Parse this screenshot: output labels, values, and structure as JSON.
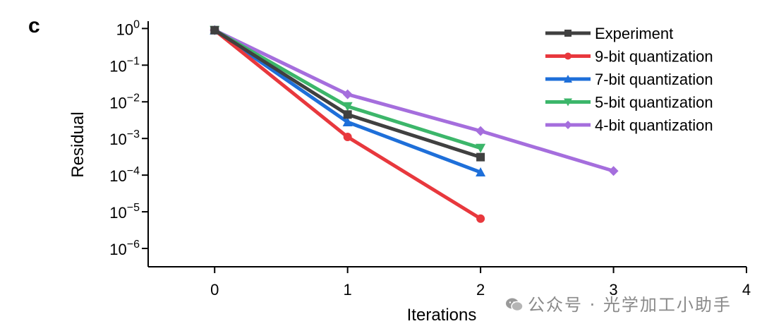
{
  "panel_label": "c",
  "watermark": "公众号 · 光学加工小助手",
  "chart_data": {
    "type": "line",
    "title": "",
    "xlabel": "Iterations",
    "ylabel": "Residual",
    "xlim": [
      -0.5,
      4
    ],
    "ylim_log10": [
      -6.5,
      0.2
    ],
    "yscale": "log",
    "xticks": [
      0,
      1,
      2,
      3,
      4
    ],
    "xtick_labels": [
      "0",
      "1",
      "2",
      "3",
      "4"
    ],
    "yticks_exponents": [
      0,
      -1,
      -2,
      -3,
      -4,
      -5,
      -6
    ],
    "ytick_base": "10",
    "grid": false,
    "legend_position": "top-right",
    "series": [
      {
        "name": "Experiment",
        "color": "#404040",
        "marker": "square",
        "x": [
          0,
          1,
          2
        ],
        "y": [
          0.9,
          0.0045,
          0.00031
        ]
      },
      {
        "name": "9-bit quantization",
        "color": "#e8383d",
        "marker": "circle",
        "x": [
          0,
          1,
          2
        ],
        "y": [
          0.9,
          0.0011,
          6.5e-06
        ]
      },
      {
        "name": "7-bit quantization",
        "color": "#1e6fd9",
        "marker": "triangle-up",
        "x": [
          0,
          1,
          2
        ],
        "y": [
          0.9,
          0.0028,
          0.00012
        ]
      },
      {
        "name": "5-bit quantization",
        "color": "#3cb66a",
        "marker": "triangle-down",
        "x": [
          0,
          1,
          2
        ],
        "y": [
          0.9,
          0.0075,
          0.00055
        ]
      },
      {
        "name": "4-bit quantization",
        "color": "#a56edd",
        "marker": "diamond",
        "x": [
          0,
          1,
          2,
          3
        ],
        "y": [
          0.9,
          0.016,
          0.0016,
          0.00013
        ]
      }
    ]
  }
}
